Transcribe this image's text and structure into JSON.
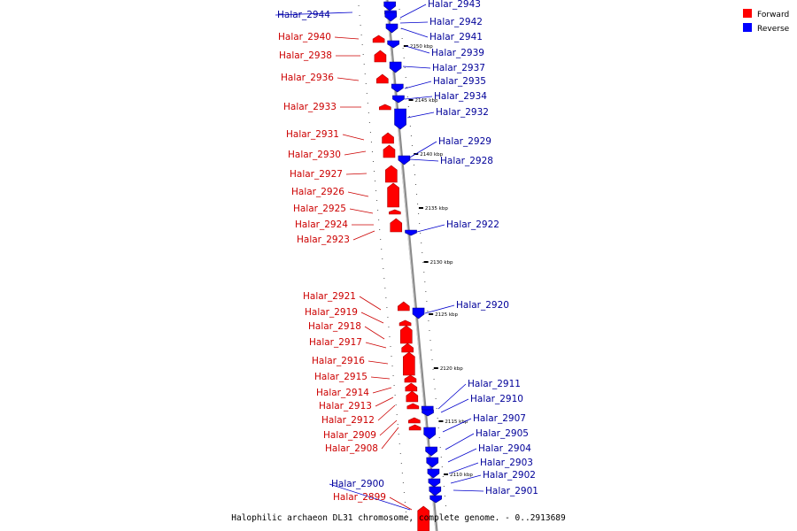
{
  "caption": "Halophilic archaeon DL31 chromosome, complete genome. - 0..2913689",
  "legend": [
    {
      "label": "Forward",
      "color": "#ff0000"
    },
    {
      "label": "Reverse",
      "color": "#0000ff"
    }
  ],
  "colors": {
    "forward": "#ff0000",
    "reverse": "#0000ff",
    "forward_text": "#cc0000",
    "reverse_text": "#000099",
    "axis": "#888888"
  },
  "ticks": [
    "2150 kbp",
    "2145 kbp",
    "2140 kbp",
    "2135 kbp",
    "2130 kbp",
    "2125 kbp",
    "2120 kbp",
    "2115 kbp",
    "2110 kbp"
  ],
  "genes_reverse": [
    "Halar_2944",
    "Halar_2943",
    "Halar_2942",
    "Halar_2941",
    "Halar_2939",
    "Halar_2937",
    "Halar_2935",
    "Halar_2934",
    "Halar_2932",
    "Halar_2929",
    "Halar_2928",
    "Halar_2922",
    "Halar_2920",
    "Halar_2911",
    "Halar_2910",
    "Halar_2907",
    "Halar_2905",
    "Halar_2904",
    "Halar_2903",
    "Halar_2902",
    "Halar_2901",
    "Halar_2900"
  ],
  "genes_forward": [
    "Halar_2940",
    "Halar_2938",
    "Halar_2936",
    "Halar_2933",
    "Halar_2931",
    "Halar_2930",
    "Halar_2927",
    "Halar_2926",
    "Halar_2925",
    "Halar_2924",
    "Halar_2923",
    "Halar_2921",
    "Halar_2919",
    "Halar_2918",
    "Halar_2917",
    "Halar_2916",
    "Halar_2915",
    "Halar_2914",
    "Halar_2913",
    "Halar_2912",
    "Halar_2909",
    "Halar_2908",
    "Halar_2899"
  ]
}
